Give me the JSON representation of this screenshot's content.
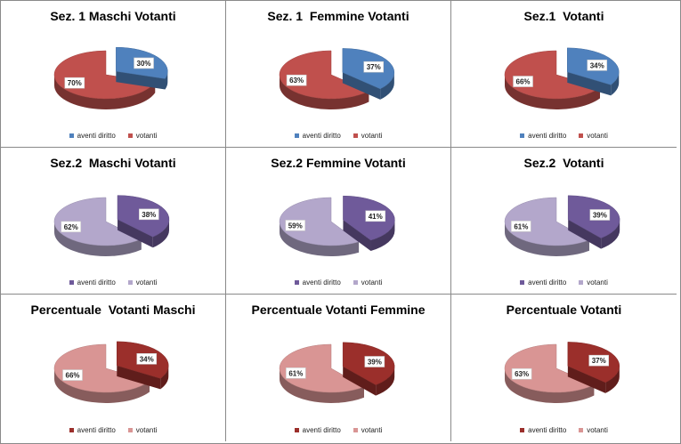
{
  "chart_data": [
    {
      "type": "pie",
      "title": "Sez. 1 Maschi Votanti",
      "labels": [
        "aventi diritto",
        "votanti"
      ],
      "values": [
        30,
        70
      ],
      "data_labels": [
        "30%",
        "70%"
      ],
      "colors": {
        "aventi diritto": "#4f81bd",
        "votanti": "#c0504d"
      },
      "legend": "bottom"
    },
    {
      "type": "pie",
      "title": "Sez. 1  Femmine Votanti",
      "labels": [
        "aventi diritto",
        "votanti"
      ],
      "values": [
        37,
        63
      ],
      "data_labels": [
        "37%",
        "63%"
      ],
      "colors": {
        "aventi diritto": "#4f81bd",
        "votanti": "#c0504d"
      },
      "legend": "bottom"
    },
    {
      "type": "pie",
      "title": "Sez.1  Votanti",
      "labels": [
        "aventi diritto",
        "votanti"
      ],
      "values": [
        34,
        66
      ],
      "data_labels": [
        "34%",
        "66%"
      ],
      "colors": {
        "aventi diritto": "#4f81bd",
        "votanti": "#c0504d"
      },
      "legend": "bottom"
    },
    {
      "type": "pie",
      "title": "Sez.2  Maschi Votanti",
      "labels": [
        "aventi diritto",
        "votanti"
      ],
      "values": [
        38,
        62
      ],
      "data_labels": [
        "38%",
        "62%"
      ],
      "colors": {
        "aventi diritto": "#6f5a9a",
        "votanti": "#b3a7cb"
      },
      "legend": "bottom"
    },
    {
      "type": "pie",
      "title": "Sez.2 Femmine Votanti",
      "labels": [
        "aventi diritto",
        "votanti"
      ],
      "values": [
        41,
        59
      ],
      "data_labels": [
        "41%",
        "59%"
      ],
      "colors": {
        "aventi diritto": "#6f5a9a",
        "votanti": "#b3a7cb"
      },
      "legend": "bottom"
    },
    {
      "type": "pie",
      "title": "Sez.2  Votanti",
      "labels": [
        "aventi diritto",
        "votanti"
      ],
      "values": [
        39,
        61
      ],
      "data_labels": [
        "39%",
        "61%"
      ],
      "colors": {
        "aventi diritto": "#6f5a9a",
        "votanti": "#b3a7cb"
      },
      "legend": "bottom"
    },
    {
      "type": "pie",
      "title": "Percentuale  Votanti Maschi",
      "labels": [
        "aventi diritto",
        "votanti"
      ],
      "values": [
        34,
        66
      ],
      "data_labels": [
        "34%",
        "66%"
      ],
      "colors": {
        "aventi diritto": "#9b2f2b",
        "votanti": "#d99594"
      },
      "legend": "bottom"
    },
    {
      "type": "pie",
      "title": "Percentuale Votanti Femmine",
      "labels": [
        "aventi diritto",
        "votanti"
      ],
      "values": [
        39,
        61
      ],
      "data_labels": [
        "39%",
        "61%"
      ],
      "colors": {
        "aventi diritto": "#9b2f2b",
        "votanti": "#d99594"
      },
      "legend": "bottom"
    },
    {
      "type": "pie",
      "title": "Percentuale Votanti",
      "labels": [
        "aventi diritto",
        "votanti"
      ],
      "values": [
        37,
        63
      ],
      "data_labels": [
        "37%",
        "63%"
      ],
      "colors": {
        "aventi diritto": "#9b2f2b",
        "votanti": "#d99594"
      },
      "legend": "bottom"
    }
  ]
}
